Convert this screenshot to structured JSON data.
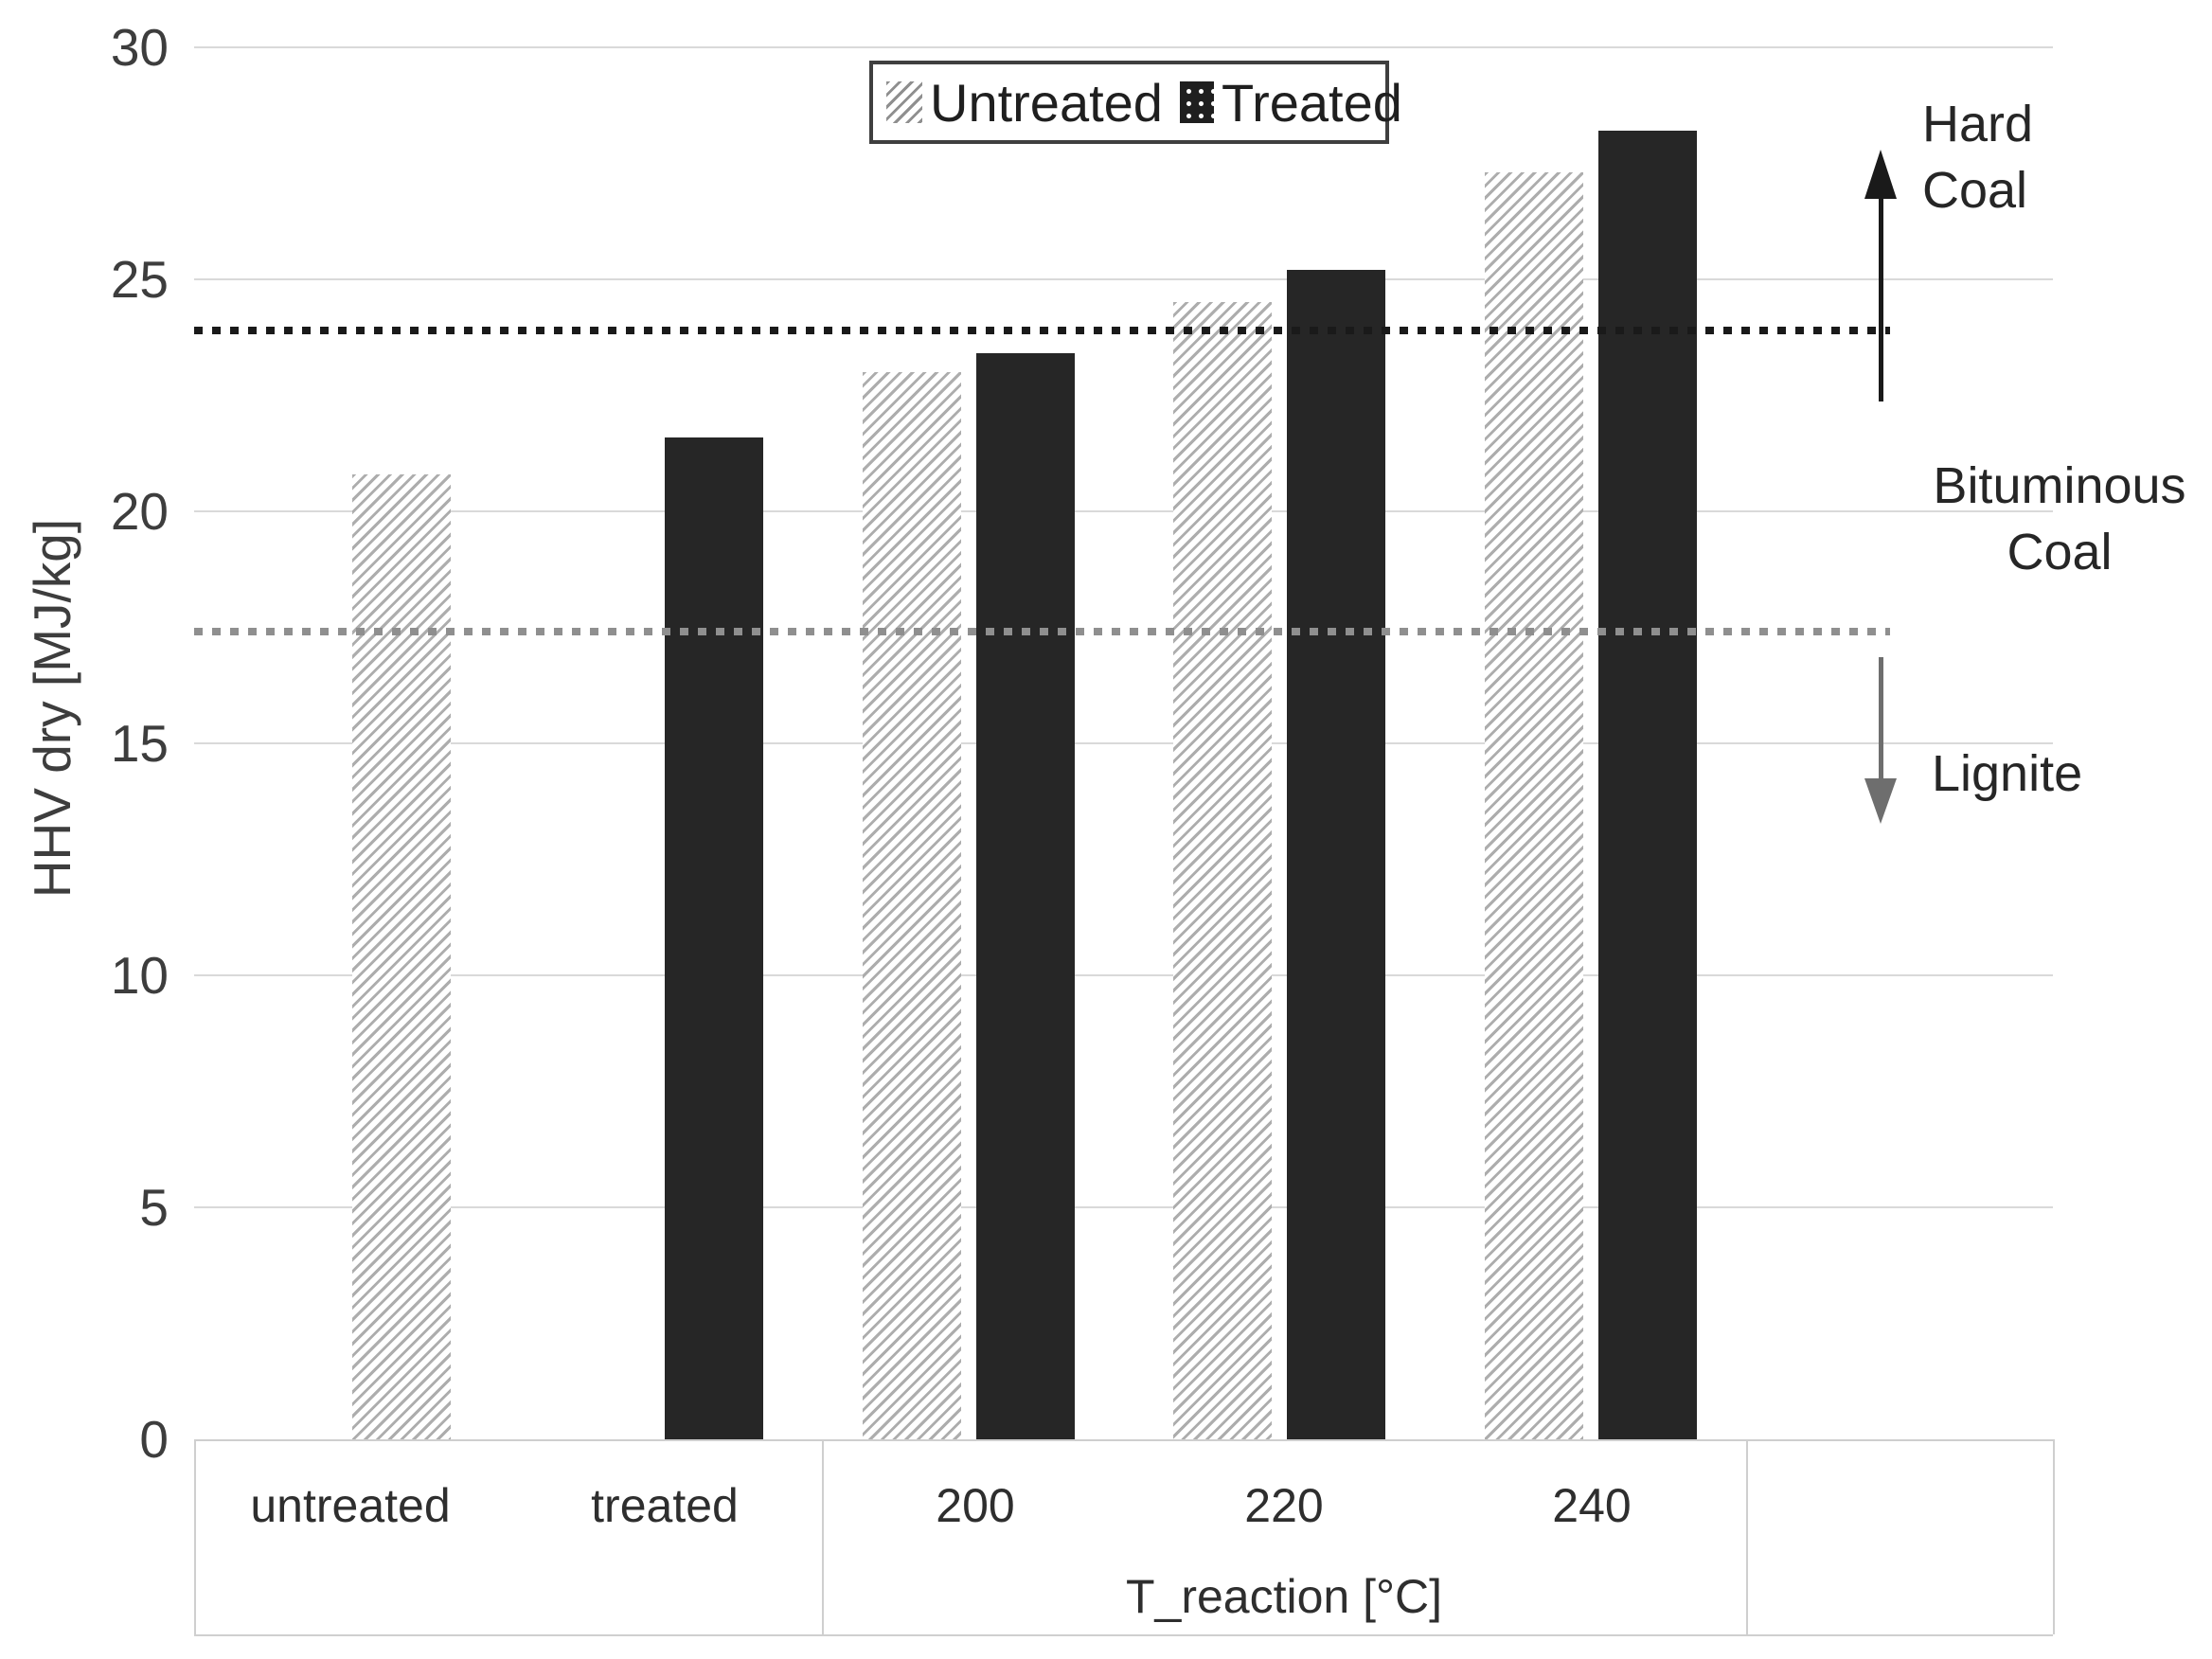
{
  "chart_data": {
    "type": "bar",
    "title": "",
    "ylabel": "HHV dry [MJ/kg]",
    "x_group_label": "T_reaction [°C]",
    "ylim": [
      0,
      30
    ],
    "yticks": [
      0,
      5,
      10,
      15,
      20,
      25,
      30
    ],
    "grid": true,
    "legend_position": "top-center",
    "series_names": [
      "Untreated",
      "Treated"
    ],
    "groups": [
      {
        "label": "untreated",
        "bars": [
          {
            "series": "Untreated",
            "value": 20.8
          }
        ]
      },
      {
        "label": "treated",
        "bars": [
          {
            "series": "Treated",
            "value": 21.6
          }
        ]
      },
      {
        "label": "200",
        "bars": [
          {
            "series": "Untreated",
            "value": 23.0
          },
          {
            "series": "Treated",
            "value": 23.4
          }
        ]
      },
      {
        "label": "220",
        "bars": [
          {
            "series": "Untreated",
            "value": 24.5
          },
          {
            "series": "Treated",
            "value": 25.2
          }
        ]
      },
      {
        "label": "240",
        "bars": [
          {
            "series": "Untreated",
            "value": 27.3
          },
          {
            "series": "Treated",
            "value": 28.2
          }
        ]
      }
    ],
    "reference_lines": [
      {
        "name": "hard-coal-threshold",
        "value": 23.9,
        "style": "dotted",
        "color": "#1a1a1a"
      },
      {
        "name": "lignite-threshold",
        "value": 17.4,
        "style": "dotted",
        "color": "#8f8f8f"
      }
    ],
    "annotations": {
      "hard_coal": {
        "lines": [
          "Hard",
          "Coal"
        ],
        "arrow": "up"
      },
      "bituminous": {
        "lines": [
          "Bituminous",
          "Coal"
        ]
      },
      "lignite": {
        "lines": [
          "Lignite"
        ],
        "arrow": "down"
      }
    }
  },
  "legend": {
    "untreated_label": "Untreated",
    "treated_label": "Treated"
  },
  "colors": {
    "treated_bar": "#262626",
    "untreated_hatch": "#adadad",
    "gridline": "#d9d9d9",
    "hard_coal_line": "#1a1a1a",
    "lignite_line": "#8f8f8f",
    "arrow_up": "#1a1a1a",
    "arrow_down": "#6e6e6e",
    "text": "#3d3d3d"
  }
}
